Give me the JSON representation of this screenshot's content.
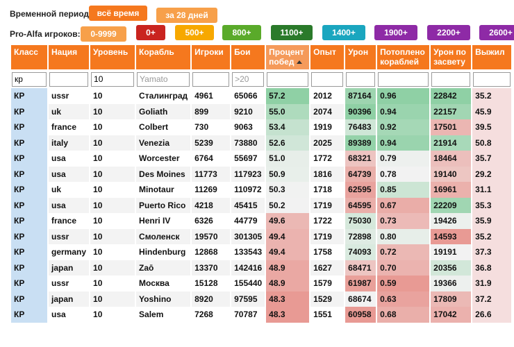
{
  "filters_bar": {
    "period_label": "Временной период:",
    "period_buttons": [
      {
        "label": "всё время",
        "color": "#f5781e"
      },
      {
        "label": "за 28 дней",
        "color": "#f7a04a"
      }
    ],
    "proalfa_label": "Pro-Alfa игроков:",
    "proalfa_buttons": [
      {
        "label": "0-9999",
        "color": "#f7a04a"
      },
      {
        "label": "0+",
        "color": "#c9241f"
      },
      {
        "label": "500+",
        "color": "#f7a800"
      },
      {
        "label": "800+",
        "color": "#5aaa2a"
      },
      {
        "label": "1100+",
        "color": "#2a7a2a"
      },
      {
        "label": "1400+",
        "color": "#1aa6bf"
      },
      {
        "label": "1900+",
        "color": "#8e2aa6"
      },
      {
        "label": "2200+",
        "color": "#8e2aa6"
      },
      {
        "label": "2600+",
        "color": "#8e2aa6"
      }
    ]
  },
  "table": {
    "columns": [
      "Класс",
      "Нация",
      "Уровень",
      "Корабль",
      "Игроки",
      "Бои",
      "Процент победₓ",
      "Опыт",
      "Урон",
      "Потоплено кораблей",
      "Урон по засвету",
      "Выжил"
    ],
    "column_labels": [
      "Класс",
      "Нация",
      "Уровень",
      "Корабль",
      "Игроки",
      "Бои",
      "Процент побед",
      "Опыт",
      "Урон",
      "Потоплено кораблей",
      "Урон по засвету",
      "Выжил"
    ],
    "sorted_column": "Процент побед",
    "filters": {
      "class_value": "кр",
      "nation_value": "",
      "tier_value": "10",
      "ship_placeholder": "Yamato",
      "players_value": "",
      "battles_placeholder": ">20"
    },
    "rows": [
      {
        "cls": "КР",
        "nation": "ussr",
        "tier": "10",
        "ship": "Сталинград",
        "players": "4961",
        "battles": "65066",
        "winrate": "57.2",
        "exp": "2012",
        "dmg": "87164",
        "kills": "0.96",
        "spot": "22842",
        "surv": "35.2"
      },
      {
        "cls": "КР",
        "nation": "uk",
        "tier": "10",
        "ship": "Goliath",
        "players": "899",
        "battles": "9210",
        "winrate": "55.0",
        "exp": "2074",
        "dmg": "90396",
        "kills": "0.94",
        "spot": "22157",
        "surv": "45.9"
      },
      {
        "cls": "КР",
        "nation": "france",
        "tier": "10",
        "ship": "Colbert",
        "players": "730",
        "battles": "9063",
        "winrate": "53.4",
        "exp": "1919",
        "dmg": "76483",
        "kills": "0.92",
        "spot": "17501",
        "surv": "39.5"
      },
      {
        "cls": "КР",
        "nation": "italy",
        "tier": "10",
        "ship": "Venezia",
        "players": "5239",
        "battles": "73880",
        "winrate": "52.6",
        "exp": "2025",
        "dmg": "89389",
        "kills": "0.94",
        "spot": "21914",
        "surv": "50.8"
      },
      {
        "cls": "КР",
        "nation": "usa",
        "tier": "10",
        "ship": "Worcester",
        "players": "6764",
        "battles": "55697",
        "winrate": "51.0",
        "exp": "1772",
        "dmg": "68321",
        "kills": "0.79",
        "spot": "18464",
        "surv": "35.7"
      },
      {
        "cls": "КР",
        "nation": "usa",
        "tier": "10",
        "ship": "Des Moines",
        "players": "11773",
        "battles": "117923",
        "winrate": "50.9",
        "exp": "1816",
        "dmg": "64739",
        "kills": "0.78",
        "spot": "19140",
        "surv": "29.2"
      },
      {
        "cls": "КР",
        "nation": "uk",
        "tier": "10",
        "ship": "Minotaur",
        "players": "11269",
        "battles": "110972",
        "winrate": "50.3",
        "exp": "1718",
        "dmg": "62595",
        "kills": "0.85",
        "spot": "16961",
        "surv": "31.1"
      },
      {
        "cls": "КР",
        "nation": "usa",
        "tier": "10",
        "ship": "Puerto Rico",
        "players": "4218",
        "battles": "45415",
        "winrate": "50.2",
        "exp": "1719",
        "dmg": "64595",
        "kills": "0.67",
        "spot": "22209",
        "surv": "35.3"
      },
      {
        "cls": "КР",
        "nation": "france",
        "tier": "10",
        "ship": "Henri IV",
        "players": "6326",
        "battles": "44779",
        "winrate": "49.6",
        "exp": "1722",
        "dmg": "75030",
        "kills": "0.73",
        "spot": "19426",
        "surv": "35.9"
      },
      {
        "cls": "КР",
        "nation": "ussr",
        "tier": "10",
        "ship": "Смоленск",
        "players": "19570",
        "battles": "301305",
        "winrate": "49.4",
        "exp": "1719",
        "dmg": "72898",
        "kills": "0.80",
        "spot": "14593",
        "surv": "35.2"
      },
      {
        "cls": "КР",
        "nation": "germany",
        "tier": "10",
        "ship": "Hindenburg",
        "players": "12868",
        "battles": "133543",
        "winrate": "49.4",
        "exp": "1758",
        "dmg": "74093",
        "kills": "0.72",
        "spot": "19191",
        "surv": "37.3"
      },
      {
        "cls": "КР",
        "nation": "japan",
        "tier": "10",
        "ship": "Zaō",
        "players": "13370",
        "battles": "142416",
        "winrate": "48.9",
        "exp": "1627",
        "dmg": "68471",
        "kills": "0.70",
        "spot": "20356",
        "surv": "36.8"
      },
      {
        "cls": "КР",
        "nation": "ussr",
        "tier": "10",
        "ship": "Москва",
        "players": "15128",
        "battles": "155440",
        "winrate": "48.9",
        "exp": "1579",
        "dmg": "61987",
        "kills": "0.59",
        "spot": "19366",
        "surv": "31.9"
      },
      {
        "cls": "КР",
        "nation": "japan",
        "tier": "10",
        "ship": "Yoshino",
        "players": "8920",
        "battles": "97595",
        "winrate": "48.3",
        "exp": "1529",
        "dmg": "68674",
        "kills": "0.63",
        "spot": "17809",
        "surv": "37.2"
      },
      {
        "cls": "КР",
        "nation": "usa",
        "tier": "10",
        "ship": "Salem",
        "players": "7268",
        "battles": "70787",
        "winrate": "48.3",
        "exp": "1551",
        "dmg": "60958",
        "kills": "0.68",
        "spot": "17042",
        "surv": "26.6"
      }
    ],
    "colors": {
      "header": "#f5781e",
      "class_cell": "#c9dff3",
      "good": "#8fd0a5",
      "neutral": "#f2f2f2",
      "bad": "#e89a94"
    }
  }
}
